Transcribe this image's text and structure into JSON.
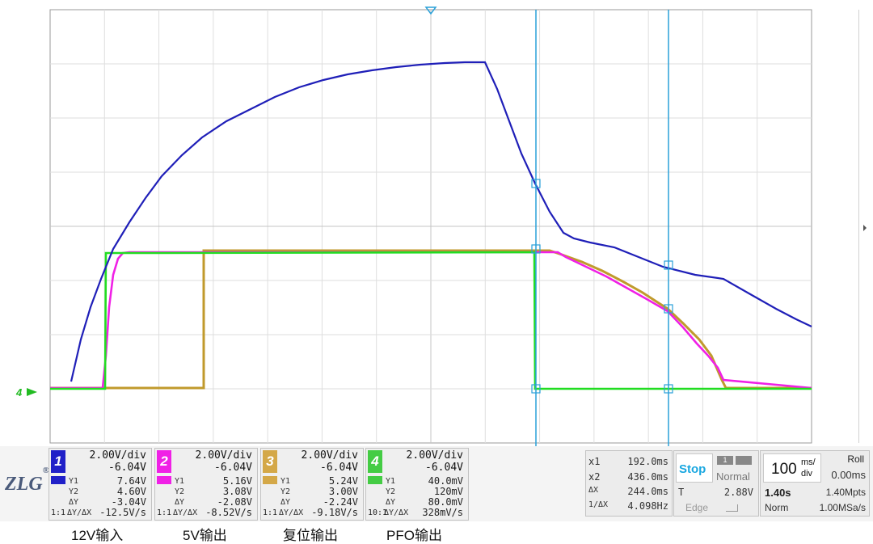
{
  "scope": {
    "trace_colors": {
      "ch1": "#1f1fb8",
      "ch2": "#f020e6",
      "ch3": "#c09a2c",
      "ch4": "#22dd22"
    },
    "cursor_color": "#2aa0d8"
  },
  "channels": [
    {
      "num": "1",
      "vdiv": "2.00V/div",
      "offset": "-6.04V",
      "y1_label": "Y1",
      "y1": "7.64V",
      "y2_label": "Y2",
      "y2": "4.60V",
      "dy_label": "ΔY",
      "dy": "-3.04V",
      "slope_label": "ΔY/ΔX",
      "slope": "-12.5V/s",
      "ratio": "1:1",
      "color": "#2020c8"
    },
    {
      "num": "2",
      "vdiv": "2.00V/div",
      "offset": "-6.04V",
      "y1_label": "Y1",
      "y1": "5.16V",
      "y2_label": "Y2",
      "y2": "3.08V",
      "dy_label": "ΔY",
      "dy": "-2.08V",
      "slope_label": "ΔY/ΔX",
      "slope": "-8.52V/s",
      "ratio": "1:1",
      "color": "#f020e6"
    },
    {
      "num": "3",
      "vdiv": "2.00V/div",
      "offset": "-6.04V",
      "y1_label": "Y1",
      "y1": "5.24V",
      "y2_label": "Y2",
      "y2": "3.00V",
      "dy_label": "ΔY",
      "dy": "-2.24V",
      "slope_label": "ΔY/ΔX",
      "slope": "-9.18V/s",
      "ratio": "1:1",
      "color": "#d4a848"
    },
    {
      "num": "4",
      "vdiv": "2.00V/div",
      "offset": "-6.04V",
      "y1_label": "Y1",
      "y1": "40.0mV",
      "y2_label": "Y2",
      "y2": "120mV",
      "dy_label": "ΔY",
      "dy": "80.0mV",
      "slope_label": "ΔY/ΔX",
      "slope": "328mV/s",
      "ratio": "10:1",
      "color": "#44cc44"
    }
  ],
  "captions": [
    "12V输入",
    "5V输出",
    "复位输出",
    "PFO输出"
  ],
  "cursors": {
    "x1_label": "x1",
    "x1": "192.0ms",
    "x2_label": "x2",
    "x2": "436.0ms",
    "dx_label": "ΔX",
    "dx": "244.0ms",
    "inv_label": "1/ΔX",
    "inv": "4.098Hz"
  },
  "trigger": {
    "state": "Stop",
    "mode": "Normal",
    "t_label": "T",
    "level": "2.88V",
    "type": "Edge"
  },
  "timebase": {
    "value": "100",
    "unit_top": "ms/",
    "unit_bottom": "div",
    "mode": "Roll",
    "delay": "0.00ms",
    "window": "1.40s",
    "points": "1.40Mpts",
    "acq": "Norm",
    "rate": "1.00MSa/s"
  },
  "brand": {
    "logo": "ZLG",
    "reg": "®"
  },
  "markers": {
    "ch4_ground": "4"
  }
}
